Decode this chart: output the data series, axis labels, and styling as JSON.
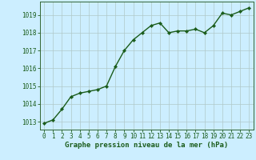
{
  "x": [
    0,
    1,
    2,
    3,
    4,
    5,
    6,
    7,
    8,
    9,
    10,
    11,
    12,
    13,
    14,
    15,
    16,
    17,
    18,
    19,
    20,
    21,
    22,
    23
  ],
  "y": [
    1012.9,
    1013.1,
    1013.7,
    1014.4,
    1014.6,
    1014.7,
    1014.8,
    1015.0,
    1016.1,
    1017.0,
    1017.6,
    1018.0,
    1018.4,
    1018.55,
    1018.0,
    1018.1,
    1018.1,
    1018.2,
    1018.0,
    1018.4,
    1019.1,
    1019.0,
    1019.2,
    1019.4
  ],
  "line_color": "#1a5c1a",
  "marker": "D",
  "marker_size": 2.2,
  "line_width": 1.0,
  "bg_color": "#cceeff",
  "grid_color": "#b0c8c8",
  "title": "Graphe pression niveau de la mer (hPa)",
  "title_color": "#1a5c1a",
  "title_fontsize": 6.5,
  "ylabel_ticks": [
    1013,
    1014,
    1015,
    1016,
    1017,
    1018,
    1019
  ],
  "ylim": [
    1012.55,
    1019.75
  ],
  "xlim": [
    -0.5,
    23.5
  ],
  "xtick_labels": [
    "0",
    "1",
    "2",
    "3",
    "4",
    "5",
    "6",
    "7",
    "8",
    "9",
    "10",
    "11",
    "12",
    "13",
    "14",
    "15",
    "16",
    "17",
    "18",
    "19",
    "20",
    "21",
    "22",
    "23"
  ],
  "tick_color": "#1a5c1a",
  "tick_fontsize": 5.5,
  "spine_color": "#336633"
}
